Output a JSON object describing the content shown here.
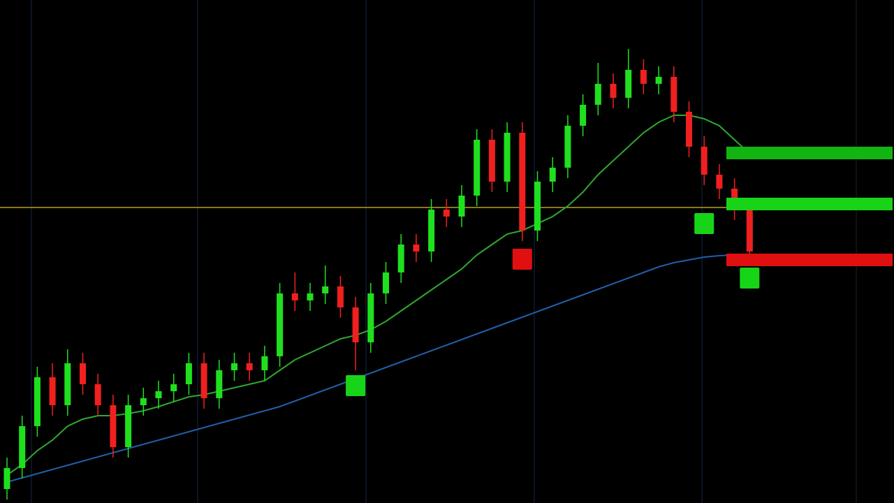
{
  "chart_data": {
    "type": "candlestick",
    "ylim": [
      0,
      720
    ],
    "up_color": "#1fe01f",
    "down_color": "#f0201e",
    "open": [
      20,
      50,
      110,
      180,
      140,
      200,
      170,
      140,
      80,
      140,
      150,
      160,
      170,
      200,
      150,
      190,
      200,
      190,
      210,
      300,
      290,
      300,
      310,
      280,
      230,
      300,
      330,
      370,
      360,
      420,
      410,
      440,
      520,
      460,
      530,
      390,
      460,
      480,
      540,
      570,
      600,
      580,
      620,
      600,
      610,
      560,
      510,
      470,
      450,
      420
    ],
    "high": [
      65,
      125,
      195,
      200,
      220,
      215,
      185,
      155,
      155,
      165,
      175,
      185,
      215,
      215,
      205,
      215,
      215,
      225,
      315,
      330,
      315,
      340,
      325,
      295,
      315,
      345,
      385,
      385,
      435,
      435,
      455,
      535,
      535,
      545,
      545,
      475,
      495,
      555,
      585,
      630,
      615,
      650,
      635,
      625,
      625,
      575,
      525,
      485,
      465,
      435
    ],
    "low": [
      5,
      35,
      95,
      125,
      125,
      155,
      125,
      65,
      65,
      125,
      135,
      145,
      155,
      135,
      135,
      175,
      175,
      175,
      195,
      275,
      275,
      285,
      265,
      190,
      215,
      285,
      315,
      345,
      345,
      395,
      395,
      425,
      445,
      445,
      375,
      375,
      445,
      465,
      525,
      555,
      565,
      565,
      585,
      585,
      545,
      495,
      455,
      435,
      405,
      345
    ],
    "close": [
      50,
      110,
      180,
      140,
      200,
      170,
      140,
      80,
      140,
      150,
      160,
      170,
      200,
      150,
      190,
      200,
      190,
      210,
      300,
      290,
      300,
      310,
      280,
      230,
      300,
      330,
      370,
      360,
      420,
      410,
      440,
      520,
      460,
      530,
      390,
      460,
      480,
      540,
      570,
      600,
      580,
      620,
      600,
      610,
      560,
      510,
      470,
      450,
      420,
      360
    ],
    "overlays": [
      {
        "color": "#1f5fa8",
        "values": [
          30,
          36,
          42,
          48,
          54,
          60,
          66,
          72,
          78,
          84,
          90,
          96,
          102,
          108,
          114,
          120,
          126,
          132,
          138,
          146,
          154,
          162,
          170,
          178,
          186,
          194,
          202,
          210,
          218,
          226,
          234,
          242,
          250,
          258,
          266,
          274,
          282,
          290,
          298,
          306,
          314,
          322,
          330,
          338,
          344,
          348,
          352,
          354,
          355,
          355
        ]
      },
      {
        "color": "#2fa830",
        "values": [
          40,
          55,
          75,
          90,
          110,
          120,
          125,
          125,
          128,
          132,
          138,
          145,
          152,
          155,
          160,
          165,
          170,
          175,
          190,
          205,
          215,
          225,
          235,
          240,
          248,
          260,
          275,
          290,
          305,
          320,
          335,
          355,
          370,
          385,
          390,
          400,
          410,
          425,
          445,
          470,
          490,
          510,
          530,
          545,
          555,
          555,
          550,
          540,
          520,
          500
        ]
      }
    ],
    "hline": {
      "value": 423,
      "color": "#b8a21c"
    },
    "levels": [
      {
        "value": 501,
        "color": "#12b412"
      },
      {
        "value": 428,
        "color": "#18d418"
      },
      {
        "value": 348,
        "color": "#e01010"
      }
    ],
    "signals": [
      {
        "index": 23,
        "value": 168,
        "color": "#18d418"
      },
      {
        "index": 34,
        "value": 349,
        "color": "#e01010"
      },
      {
        "index": 46,
        "value": 400,
        "color": "#18d418"
      },
      {
        "index": 49,
        "value": 322,
        "color": "#18d418"
      }
    ]
  }
}
